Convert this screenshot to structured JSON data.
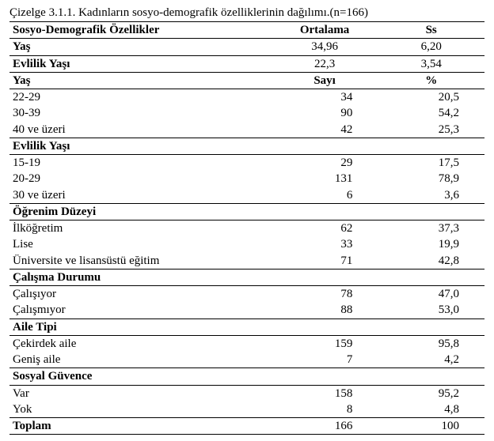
{
  "caption": "Çizelge 3.1.1. Kadınların sosyo-demografik özelliklerinin dağılımı.(n=166)",
  "hdr1": {
    "c1": "Sosyo-Demografik Özellikler",
    "c2": "Ortalama",
    "c3": "Ss"
  },
  "yas_mean": {
    "c1": "Yaş",
    "c2": "34,96",
    "c3": "6,20"
  },
  "evyas_mean": {
    "c1": "Evlilik Yaşı",
    "c2": "22,3",
    "c3": "3,54"
  },
  "hdr2": {
    "c1": "Yaş",
    "c2": "Sayı",
    "c3": "%"
  },
  "yas": {
    "r1": {
      "c1": "22-29",
      "c2": "34",
      "c3": "20,5"
    },
    "r2": {
      "c1": "30-39",
      "c2": "90",
      "c3": "54,2"
    },
    "r3": {
      "c1": "40 ve üzeri",
      "c2": "42",
      "c3": "25,3"
    }
  },
  "evyas_h": "Evlilik Yaşı",
  "evyas": {
    "r1": {
      "c1": "15-19",
      "c2": "29",
      "c3": "17,5"
    },
    "r2": {
      "c1": "20-29",
      "c2": "131",
      "c3": "78,9"
    },
    "r3": {
      "c1": "30 ve üzeri",
      "c2": "6",
      "c3": "3,6"
    }
  },
  "ogr_h": "Öğrenim Düzeyi",
  "ogr": {
    "r1": {
      "c1": "İlköğretim",
      "c2": "62",
      "c3": "37,3"
    },
    "r2": {
      "c1": "Lise",
      "c2": "33",
      "c3": "19,9"
    },
    "r3": {
      "c1": "Üniversite ve lisansüstü eğitim",
      "c2": "71",
      "c3": "42,8"
    }
  },
  "cal_h": "Çalışma Durumu",
  "cal": {
    "r1": {
      "c1": "Çalışıyor",
      "c2": "78",
      "c3": "47,0"
    },
    "r2": {
      "c1": "Çalışmıyor",
      "c2": "88",
      "c3": "53,0"
    }
  },
  "aile_h": "Aile Tipi",
  "aile": {
    "r1": {
      "c1": "Çekirdek aile",
      "c2": "159",
      "c3": "95,8"
    },
    "r2": {
      "c1": "Geniş aile",
      "c2": "7",
      "c3": "4,2"
    }
  },
  "sg_h": "Sosyal Güvence",
  "sg": {
    "r1": {
      "c1": "Var",
      "c2": "158",
      "c3": "95,2"
    },
    "r2": {
      "c1": "Yok",
      "c2": "8",
      "c3": "4,8"
    }
  },
  "toplam": {
    "c1": "Toplam",
    "c2": "166",
    "c3": "100"
  }
}
